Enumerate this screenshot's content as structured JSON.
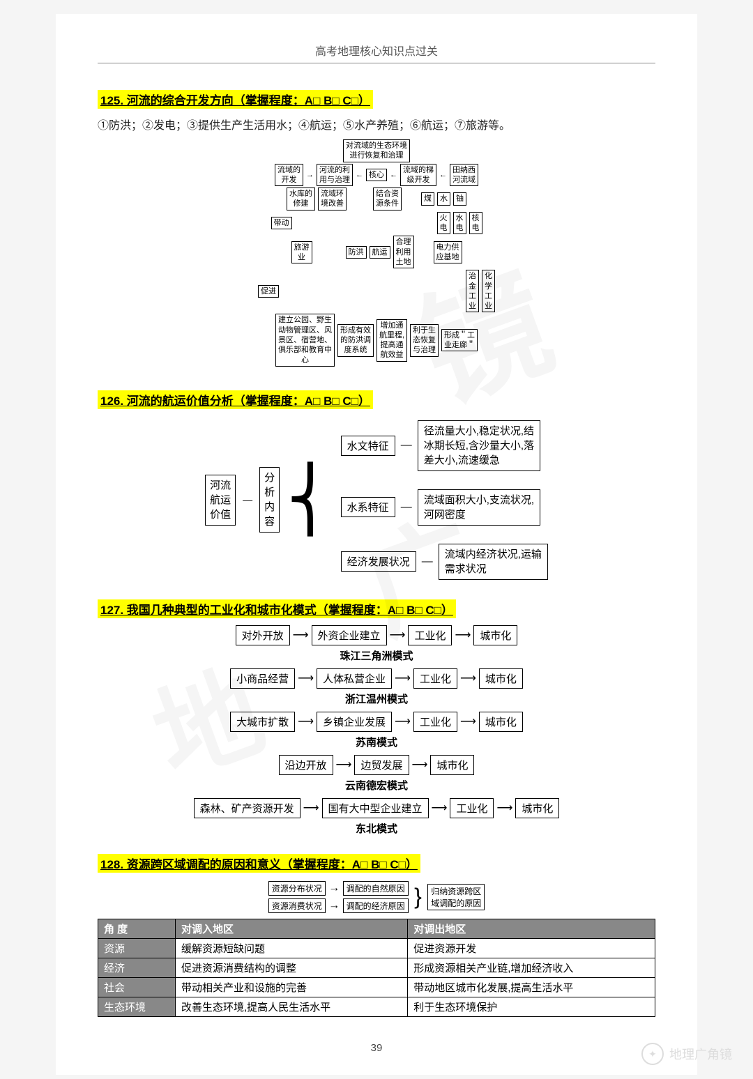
{
  "page": {
    "header": "高考地理核心知识点过关",
    "number": "39"
  },
  "footer": {
    "brand": "地理广角镜"
  },
  "s125": {
    "title": "125.  河流的综合开发方向（掌握程度：A□ B□ C□）",
    "text": "①防洪；②发电；③提供生产生活用水；④航运；⑤水产养殖；⑥航运；⑦旅游等。",
    "nodes": {
      "top": "对流域的生态环境\n进行恢复和治理",
      "r1a": "流域的\n开发",
      "r1b": "河流的利\n用与治理",
      "r1c": "核心",
      "r1d": "流域的梯\n级开发",
      "r1e": "田纳西\n河流域",
      "r2a": "水库的\n修建",
      "r2b": "流域环\n境改善",
      "r2c": "结合资\n源条件",
      "m1": "煤",
      "m2": "水",
      "m3": "铀",
      "m1b": "火\n电",
      "m2b": "水\n电",
      "m3b": "核\n电",
      "r3a": "带动",
      "r4a": "旅游\n业",
      "r4b": "防洪",
      "r4c": "航运",
      "r4d": "合理\n利用\n土地",
      "r4e": "电力供\n应基地",
      "r5a": "促进",
      "r5b": "治\n金\n工\n业",
      "r5c": "化\n学\n工\n业",
      "b1": "建立公园、野生\n动物管理区、风\n景区、宿营地、\n俱乐部和教育中\n心",
      "b2": "形成有效\n的防洪调\n度系统",
      "b3": "增加通\n航里程,\n提高通\n航效益",
      "b4": "利于生\n态恢复\n与治理",
      "b5": "形成＂工\n业走廊＂"
    }
  },
  "s126": {
    "title": "126. 河流的航运价值分析（掌握程度：A□ B□ C□）",
    "root": "河流\n航运\n价值",
    "mid": "分\n析\n内\n容",
    "branches": [
      {
        "label": "水文特征",
        "text": "径流量大小,稳定状况,结\n冰期长短,含沙量大小,落\n差大小,流速缓急"
      },
      {
        "label": "水系特征",
        "text": "流域面积大小,支流状况,\n河网密度"
      },
      {
        "label": "经济发展状况",
        "text": "流域内经济状况,运输\n需求状况"
      }
    ]
  },
  "s127": {
    "title": "127.  我国几种典型的工业化和城市化模式（掌握程度：A□ B□ C□）",
    "rows": [
      {
        "steps": [
          "对外开放",
          "外资企业建立",
          "工业化",
          "城市化"
        ],
        "label": "珠江三角洲模式"
      },
      {
        "steps": [
          "小商品经营",
          "人体私营企业",
          "工业化",
          "城市化"
        ],
        "label": "浙江温州模式"
      },
      {
        "steps": [
          "大城市扩散",
          "乡镇企业发展",
          "工业化",
          "城市化"
        ],
        "label": "苏南模式"
      },
      {
        "steps": [
          "沿边开放",
          "边贸发展",
          "城市化"
        ],
        "label": "云南德宏模式"
      },
      {
        "steps": [
          "森林、矿产资源开发",
          "国有大中型企业建立",
          "工业化",
          "城市化"
        ],
        "label": "东北模式"
      }
    ]
  },
  "s128": {
    "title": "128.  资源跨区域调配的原因和意义（掌握程度：A□ B□ C□）",
    "reason": {
      "a1": "资源分布状况",
      "a2": "调配的自然原因",
      "b1": "资源消费状况",
      "b2": "调配的经济原因",
      "out": "归纳资源跨区\n域调配的原因"
    },
    "table": {
      "headers": [
        "角  度",
        "对调入地区",
        "对调出地区"
      ],
      "rows": [
        [
          "资源",
          "缓解资源短缺问题",
          "促进资源开发"
        ],
        [
          "经济",
          "促进资源消费结构的调整",
          "形成资源相关产业链,增加经济收入"
        ],
        [
          "社会",
          "带动相关产业和设施的完善",
          "带动地区城市化发展,提高生活水平"
        ],
        [
          "生态环境",
          "改善生态环境,提高人民生活水平",
          "利于生态环境保护"
        ]
      ]
    }
  }
}
